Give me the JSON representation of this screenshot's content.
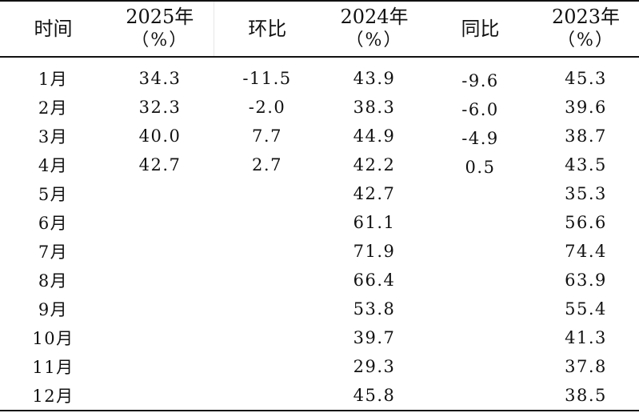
{
  "table": {
    "headers": [
      {
        "line1": "时间",
        "line2": ""
      },
      {
        "line1": "2025年",
        "line2": "（%）"
      },
      {
        "line1": "环比",
        "line2": ""
      },
      {
        "line1": "2024年",
        "line2": "（%）"
      },
      {
        "line1": "同比",
        "line2": ""
      },
      {
        "line1": "2023年",
        "line2": "（%）"
      }
    ],
    "rows": [
      [
        "1月",
        "34.3",
        "-11.5",
        "43.9",
        "-9.6",
        "45.3"
      ],
      [
        "2月",
        "32.3",
        "-2.0",
        "38.3",
        "-6.0",
        "39.6"
      ],
      [
        "3月",
        "40.0",
        "7.7",
        "44.9",
        "-4.9",
        "38.7"
      ],
      [
        "4月",
        "42.7",
        "2.7",
        "42.2",
        "0.5",
        "43.5"
      ],
      [
        "5月",
        "",
        "",
        "42.7",
        "",
        "35.3"
      ],
      [
        "6月",
        "",
        "",
        "61.1",
        "",
        "56.6"
      ],
      [
        "7月",
        "",
        "",
        "71.9",
        "",
        "74.4"
      ],
      [
        "8月",
        "",
        "",
        "66.4",
        "",
        "63.9"
      ],
      [
        "9月",
        "",
        "",
        "53.8",
        "",
        "55.4"
      ],
      [
        "10月",
        "",
        "",
        "39.7",
        "",
        "41.3"
      ],
      [
        "11月",
        "",
        "",
        "29.3",
        "",
        "37.8"
      ],
      [
        "12月",
        "",
        "",
        "45.8",
        "",
        "38.5"
      ]
    ]
  }
}
